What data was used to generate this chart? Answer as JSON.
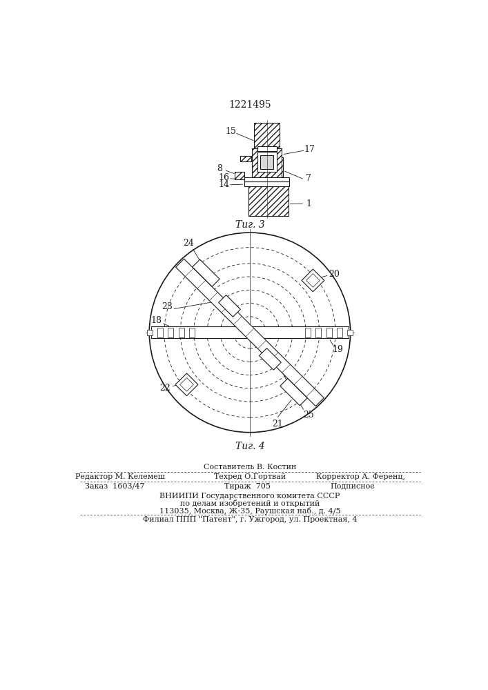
{
  "bg_color": "#ffffff",
  "patent_number": "1221495",
  "fig3_label": "Τиг. 3",
  "fig4_label": "Τиг. 4",
  "footer_line0_center": "Составитель В. Костин",
  "footer_line1_left": "Редактор М. Келемеш",
  "footer_line1_center": "Техред О.Гортвай",
  "footer_line1_right": "Корректор А. Ференц,",
  "footer_order": "Заказ  1603/47",
  "footer_tirazh": "Тираж  705",
  "footer_podpisnoe": "Подписное",
  "footer_vniiipi1": "ВНИИПИ Государственного комитета СССР",
  "footer_vniiipi2": "по делам изобретений и открытий",
  "footer_vniiipi3": "113035, Москва, Ж-35, Раушская наб., д. 4/5",
  "footer_filial": "Филиал ППП \"Патент\", г. Ужгород, ул. Проектная, 4"
}
